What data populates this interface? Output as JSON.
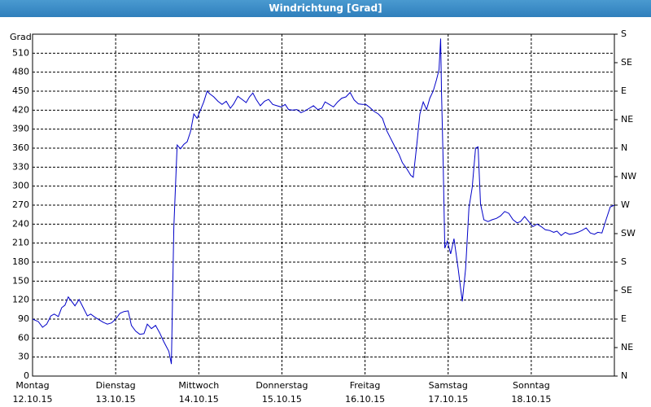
{
  "chart_data": {
    "type": "line",
    "title": "Windrichtung [Grad]",
    "y_label": "Grad",
    "xlim": [
      0,
      7
    ],
    "xticks": [
      {
        "value": 0,
        "label": "Montag",
        "date": "12.10.15"
      },
      {
        "value": 1,
        "label": "Dienstag",
        "date": "13.10.15"
      },
      {
        "value": 2,
        "label": "Mittwoch",
        "date": "14.10.15"
      },
      {
        "value": 3,
        "label": "Donnerstag",
        "date": "15.10.15"
      },
      {
        "value": 4,
        "label": "Freitag",
        "date": "16.10.15"
      },
      {
        "value": 5,
        "label": "Samstag",
        "date": "17.10.15"
      },
      {
        "value": 6,
        "label": "Sonntag",
        "date": "18.10.15"
      }
    ],
    "ylim": [
      0,
      540
    ],
    "yticks": [
      0,
      30,
      60,
      90,
      120,
      150,
      180,
      210,
      240,
      270,
      300,
      330,
      360,
      390,
      420,
      450,
      480,
      510
    ],
    "y2lim": [
      0,
      540
    ],
    "y2ticks": [
      {
        "value": 0,
        "label": "N"
      },
      {
        "value": 45,
        "label": "NE"
      },
      {
        "value": 90,
        "label": "E"
      },
      {
        "value": 135,
        "label": "SE"
      },
      {
        "value": 180,
        "label": "S"
      },
      {
        "value": 225,
        "label": "SW"
      },
      {
        "value": 270,
        "label": "W"
      },
      {
        "value": 315,
        "label": "NW"
      },
      {
        "value": 360,
        "label": "N"
      },
      {
        "value": 405,
        "label": "NE"
      },
      {
        "value": 450,
        "label": "E"
      },
      {
        "value": 495,
        "label": "SE"
      },
      {
        "value": 540,
        "label": "S"
      }
    ],
    "grid": true,
    "color": "#0000c8",
    "x": [
      0,
      0.07,
      0.12,
      0.17,
      0.22,
      0.26,
      0.31,
      0.35,
      0.39,
      0.43,
      0.47,
      0.51,
      0.56,
      0.61,
      0.66,
      0.7,
      0.75,
      0.8,
      0.85,
      0.9,
      0.95,
      1.0,
      1.05,
      1.1,
      1.15,
      1.19,
      1.24,
      1.29,
      1.34,
      1.38,
      1.43,
      1.48,
      1.53,
      1.58,
      1.64,
      1.67,
      1.7,
      1.74,
      1.78,
      1.82,
      1.86,
      1.9,
      1.94,
      1.98,
      2.02,
      2.06,
      2.1,
      2.13,
      2.18,
      2.23,
      2.28,
      2.33,
      2.38,
      2.42,
      2.47,
      2.52,
      2.57,
      2.61,
      2.65,
      2.69,
      2.74,
      2.79,
      2.84,
      2.89,
      2.94,
      2.99,
      3.04,
      3.08,
      3.13,
      3.18,
      3.23,
      3.28,
      3.33,
      3.38,
      3.43,
      3.48,
      3.52,
      3.57,
      3.62,
      3.67,
      3.72,
      3.77,
      3.82,
      3.87,
      3.92,
      3.97,
      4.01,
      4.06,
      4.11,
      4.16,
      4.21,
      4.26,
      4.31,
      4.36,
      4.41,
      4.45,
      4.5,
      4.55,
      4.58,
      4.62,
      4.66,
      4.7,
      4.74,
      4.78,
      4.82,
      4.86,
      4.89,
      4.91,
      4.92,
      4.94,
      4.96,
      4.99,
      5.03,
      5.07,
      5.12,
      5.17,
      5.21,
      5.25,
      5.29,
      5.33,
      5.36,
      5.39,
      5.43,
      5.48,
      5.53,
      5.58,
      5.63,
      5.68,
      5.73,
      5.78,
      5.83,
      5.87,
      5.92,
      5.97,
      6.02,
      6.07,
      6.12,
      6.17,
      6.22,
      6.27,
      6.31,
      6.36,
      6.41,
      6.46,
      6.51,
      6.56,
      6.61,
      6.66,
      6.71,
      6.76,
      6.8,
      6.85,
      6.9,
      6.95,
      7.0
    ],
    "values": [
      90,
      86,
      77,
      82,
      95,
      98,
      94,
      108,
      112,
      125,
      118,
      111,
      121,
      108,
      95,
      98,
      93,
      89,
      85,
      82,
      84,
      90,
      99,
      102,
      103,
      80,
      71,
      66,
      67,
      82,
      75,
      80,
      68,
      54,
      39,
      19,
      234,
      365,
      359,
      366,
      370,
      386,
      414,
      407,
      420,
      433,
      450,
      446,
      441,
      434,
      429,
      434,
      423,
      430,
      442,
      437,
      432,
      441,
      447,
      437,
      427,
      434,
      437,
      429,
      427,
      425,
      429,
      421,
      420,
      421,
      416,
      419,
      423,
      427,
      421,
      423,
      433,
      429,
      425,
      433,
      439,
      441,
      448,
      436,
      430,
      429,
      429,
      424,
      418,
      414,
      407,
      388,
      375,
      362,
      350,
      337,
      328,
      317,
      314,
      362,
      414,
      433,
      421,
      439,
      450,
      468,
      484,
      533,
      452,
      337,
      202,
      213,
      193,
      217,
      170,
      118,
      170,
      266,
      298,
      360,
      362,
      272,
      247,
      244,
      247,
      249,
      253,
      260,
      257,
      247,
      242,
      244,
      252,
      244,
      236,
      240,
      236,
      231,
      230,
      227,
      229,
      222,
      227,
      224,
      225,
      227,
      230,
      234,
      226,
      224,
      227,
      226,
      247,
      267,
      270
    ]
  }
}
